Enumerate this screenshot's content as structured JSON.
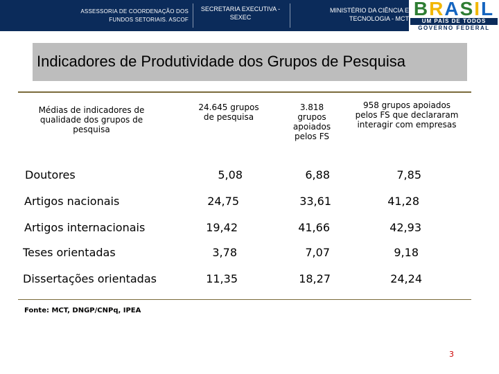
{
  "header": {
    "ascof": "ASSESSORIA DE COORDENAÇÃO DOS FUNDOS SETORIAIS. ASCOF",
    "sexec": "SECRETARIA EXECUTIVA - SEXEC",
    "mct": "MINISTÉRIO DA CIÊNCIA E TECNOLOGIA - MCT",
    "logo": {
      "word_letters": [
        "B",
        "R",
        "A",
        "S",
        "I",
        "L"
      ],
      "tagline": "UM PAÍS DE TODOS",
      "government": "GOVERNO FEDERAL",
      "colors": {
        "green": "#2e7d32",
        "yellow": "#f2b705",
        "blue": "#1565c0",
        "navy": "#0b2b5a"
      }
    }
  },
  "title": "Indicadores de Produtividade dos Grupos de Pesquisa",
  "table": {
    "label_header": "Médias de indicadores de qualidade dos grupos de pesquisa",
    "columns": [
      "24.645 grupos de pesquisa",
      "3.818 grupos apoiados pelos FS",
      "958 grupos apoiados pelos FS que declararam interagir com empresas"
    ],
    "rows": [
      {
        "label": "Doutores",
        "values": [
          "5,08",
          "6,88",
          "7,85"
        ]
      },
      {
        "label": "Artigos nacionais",
        "values": [
          "24,75",
          "33,61",
          "41,28"
        ]
      },
      {
        "label": "Artigos internacionais",
        "values": [
          "19,42",
          "41,66",
          "42,93"
        ]
      },
      {
        "label": "Teses orientadas",
        "values": [
          "3,78",
          "7,07",
          "9,18"
        ]
      },
      {
        "label": "Dissertações orientadas",
        "values": [
          "11,35",
          "18,27",
          "24,24"
        ]
      }
    ]
  },
  "source": "Fonte: MCT, DNGP/CNPq, IPEA",
  "page_number": "3",
  "colors": {
    "header_band": "#0b2b5a",
    "title_bar": "#bdbdbd",
    "rule": "#7a6a3a",
    "page_number": "#cc0000"
  }
}
